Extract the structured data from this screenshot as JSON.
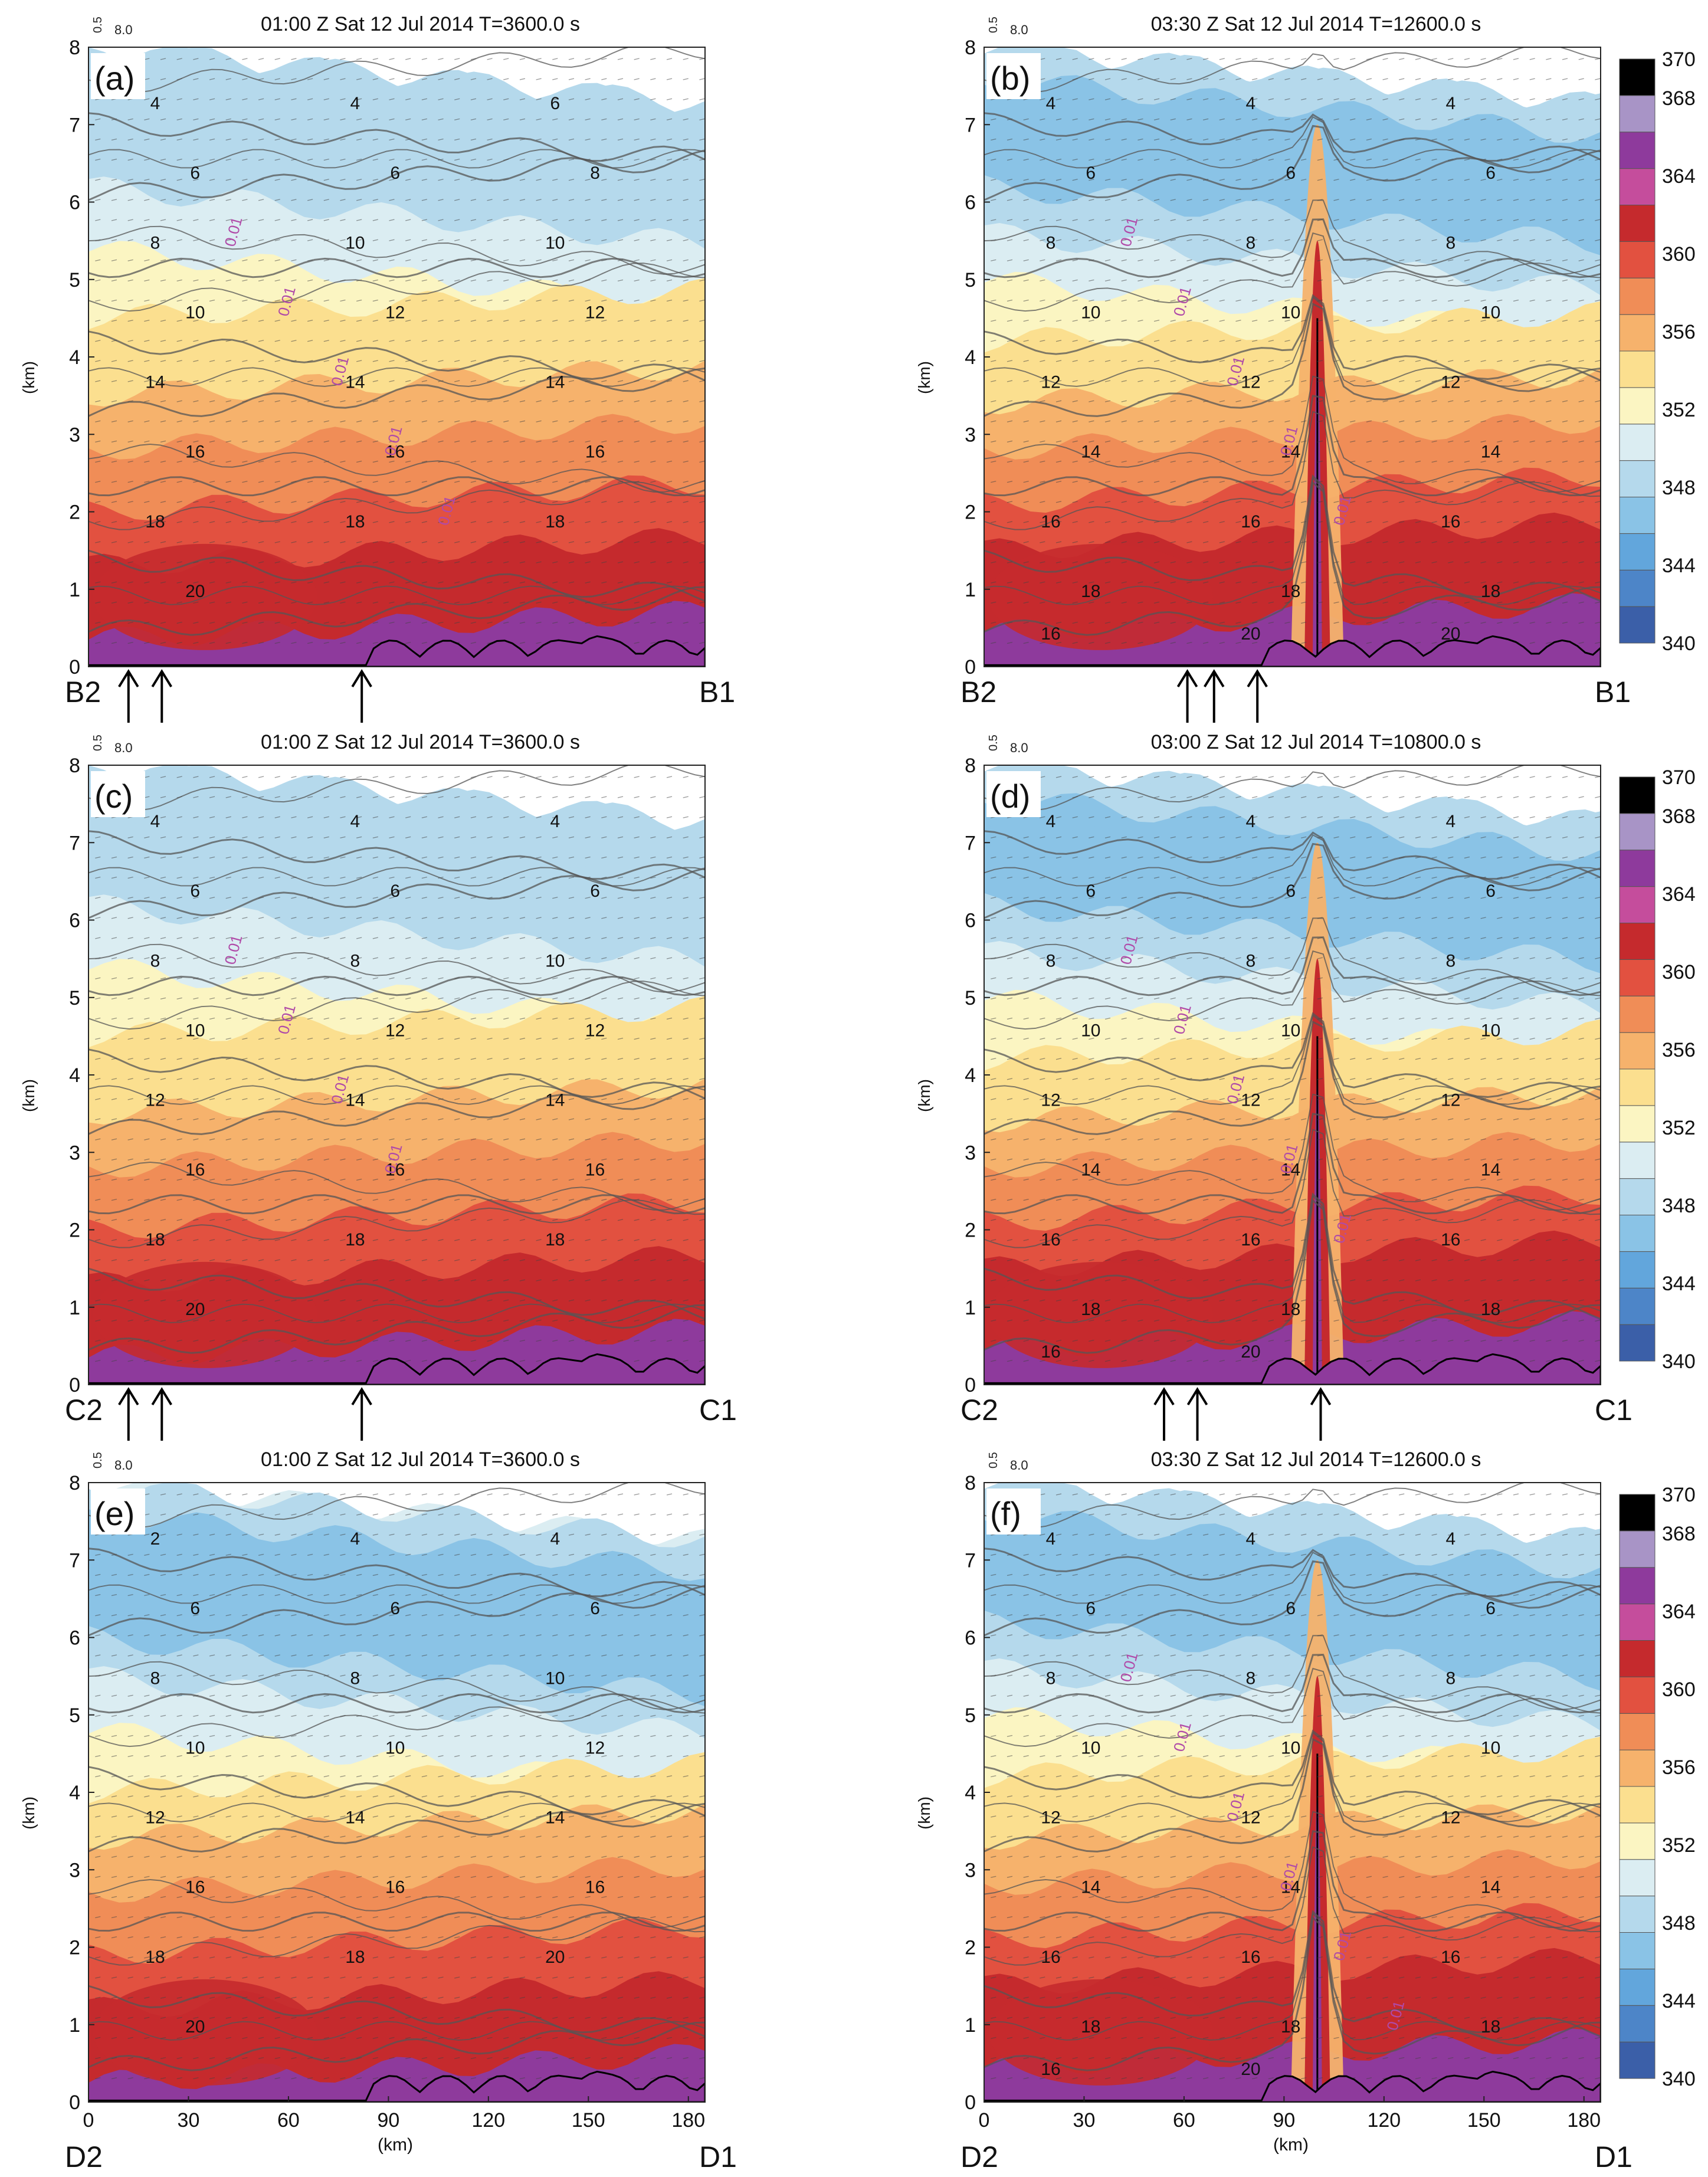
{
  "figure": {
    "x_axis_label": "(km)",
    "y_axis_label": "(km)",
    "x_ticks": [
      "0",
      "30",
      "60",
      "90",
      "120",
      "150",
      "180"
    ],
    "y_ticks": [
      "0",
      "1",
      "2",
      "3",
      "4",
      "5",
      "6",
      "7",
      "8"
    ],
    "vector_key": [
      "0.5",
      "8.0"
    ]
  },
  "colorbar": {
    "tick_labels": [
      "370",
      "368",
      "364",
      "360",
      "356",
      "352",
      "348",
      "344",
      "340"
    ],
    "levels": [
      340,
      342,
      344,
      346,
      348,
      350,
      352,
      354,
      356,
      358,
      360,
      362,
      364,
      366,
      368,
      370
    ],
    "colors": [
      "#3b5fa8",
      "#4d85c8",
      "#62a6dc",
      "#8ac3e6",
      "#b5d9ec",
      "#dbedf2",
      "#fbf5c2",
      "#fbdf8f",
      "#f6b26c",
      "#f08d57",
      "#e25140",
      "#c52a2d",
      "#c54d9c",
      "#8e3a9c",
      "#a894c6",
      "#000000"
    ]
  },
  "chart_data": [
    {
      "type": "heatmap",
      "panel_label": "(a)",
      "title": "01:00 Z Sat 12 Jul 2014 T=3600.0 s",
      "left_label": "B2",
      "right_label": "B1",
      "xlabel": "",
      "ylabel": "(km)",
      "xlim": [
        0,
        185
      ],
      "ylim": [
        0,
        8
      ],
      "contour_labels": [
        "4",
        "4",
        "6",
        "6",
        "6",
        "8",
        "8",
        "10",
        "10",
        "10",
        "12",
        "12",
        "14",
        "14",
        "14",
        "16",
        "16",
        "16",
        "18",
        "18",
        "18",
        "20"
      ],
      "cloud_labels": [
        "0.01",
        "0.01",
        "0.01",
        "0.01",
        "0.01"
      ],
      "arrows_km": [
        12,
        22,
        82
      ]
    },
    {
      "type": "heatmap",
      "panel_label": "(b)",
      "title": "03:30 Z Sat 12 Jul 2014 T=12600.0 s",
      "left_label": "B2",
      "right_label": "B1",
      "xlabel": "",
      "ylabel": "",
      "xlim": [
        0,
        185
      ],
      "ylim": [
        0,
        8
      ],
      "contour_labels": [
        "4",
        "4",
        "4",
        "6",
        "6",
        "6",
        "8",
        "8",
        "8",
        "10",
        "10",
        "10",
        "12",
        "12",
        "12",
        "14",
        "14",
        "14",
        "16",
        "16",
        "16",
        "18",
        "18",
        "18",
        "16",
        "20",
        "20"
      ],
      "cloud_labels": [
        "0.01",
        "0.01",
        "0.01",
        "0.01",
        "0.01"
      ],
      "arrows_km": [
        61,
        69,
        82
      ]
    },
    {
      "type": "heatmap",
      "panel_label": "(c)",
      "title": "01:00 Z Sat 12 Jul 2014 T=3600.0 s",
      "left_label": "C2",
      "right_label": "C1",
      "xlabel": "",
      "ylabel": "(km)",
      "xlim": [
        0,
        185
      ],
      "ylim": [
        0,
        8
      ],
      "contour_labels": [
        "4",
        "4",
        "4",
        "6",
        "6",
        "6",
        "8",
        "8",
        "10",
        "10",
        "12",
        "12",
        "12",
        "14",
        "14",
        "16",
        "16",
        "16",
        "18",
        "18",
        "18",
        "20"
      ],
      "cloud_labels": [
        "0.01",
        "0.01",
        "0.01",
        "0.01"
      ],
      "arrows_km": [
        12,
        22,
        82
      ]
    },
    {
      "type": "heatmap",
      "panel_label": "(d)",
      "title": "03:00 Z Sat 12 Jul 2014 T=10800.0 s",
      "left_label": "C2",
      "right_label": "C1",
      "xlabel": "",
      "ylabel": "",
      "xlim": [
        0,
        185
      ],
      "ylim": [
        0,
        8
      ],
      "contour_labels": [
        "4",
        "4",
        "4",
        "6",
        "6",
        "6",
        "8",
        "8",
        "8",
        "10",
        "10",
        "10",
        "12",
        "12",
        "12",
        "14",
        "14",
        "14",
        "16",
        "16",
        "16",
        "18",
        "18",
        "18",
        "16",
        "20"
      ],
      "cloud_labels": [
        "0.01",
        "0.01",
        "0.01",
        "0.01",
        "0.01"
      ],
      "arrows_km": [
        54,
        64,
        101
      ]
    },
    {
      "type": "heatmap",
      "panel_label": "(e)",
      "title": "01:00 Z Sat 12 Jul 2014 T=3600.0 s",
      "left_label": "D2",
      "right_label": "D1",
      "xlabel": "(km)",
      "ylabel": "(km)",
      "xlim": [
        0,
        185
      ],
      "ylim": [
        0,
        8
      ],
      "contour_labels": [
        "2",
        "4",
        "4",
        "6",
        "6",
        "6",
        "8",
        "8",
        "10",
        "10",
        "10",
        "12",
        "12",
        "14",
        "14",
        "16",
        "16",
        "16",
        "18",
        "18",
        "20",
        "20"
      ],
      "cloud_labels": [],
      "arrows_km": []
    },
    {
      "type": "heatmap",
      "panel_label": "(f)",
      "title": "03:30 Z Sat 12 Jul 2014 T=12600.0 s",
      "left_label": "D2",
      "right_label": "D1",
      "xlabel": "(km)",
      "ylabel": "",
      "xlim": [
        0,
        185
      ],
      "ylim": [
        0,
        8
      ],
      "contour_labels": [
        "4",
        "4",
        "4",
        "6",
        "6",
        "6",
        "8",
        "8",
        "8",
        "10",
        "10",
        "10",
        "12",
        "12",
        "12",
        "14",
        "14",
        "14",
        "16",
        "16",
        "16",
        "18",
        "18",
        "18",
        "16",
        "20"
      ],
      "cloud_labels": [
        "0.01",
        "0.01",
        "0.01",
        "0.01",
        "0.01",
        "0.01"
      ],
      "arrows_km": []
    }
  ]
}
